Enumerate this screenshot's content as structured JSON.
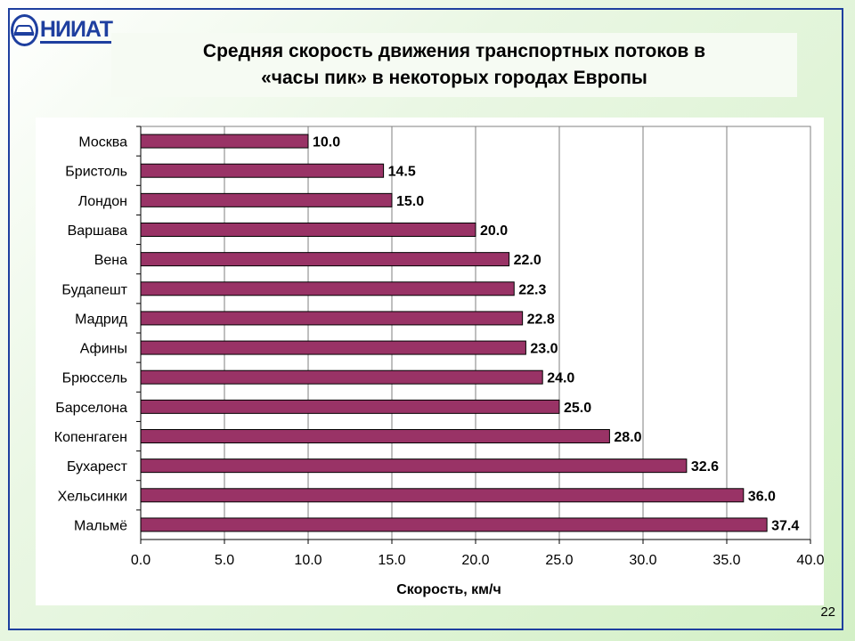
{
  "header": {
    "logo_text": "НИИАТ",
    "title_line1": "Средняя скорость движения транспортных потоков в",
    "title_line2": "«часы пик» в некоторых городах Европы"
  },
  "page_number": "22",
  "colors": {
    "bar": "#993366",
    "frame": "#1e3f9f",
    "grid": "#7f7f7f"
  },
  "chart_data": {
    "type": "bar",
    "orientation": "horizontal",
    "categories": [
      "Москва",
      "Бристоль",
      "Лондон",
      "Варшава",
      "Вена",
      "Будапешт",
      "Мадрид",
      "Афины",
      "Брюссель",
      "Барселона",
      "Копенгаген",
      "Бухарест",
      "Хельсинки",
      "Мальмё"
    ],
    "values": [
      10.0,
      14.5,
      15.0,
      20.0,
      22.0,
      22.3,
      22.8,
      23.0,
      24.0,
      25.0,
      28.0,
      32.6,
      36.0,
      37.4
    ],
    "value_labels": [
      "10.0",
      "14.5",
      "15.0",
      "20.0",
      "22.0",
      "22.3",
      "22.8",
      "23.0",
      "24.0",
      "25.0",
      "28.0",
      "32.6",
      "36.0",
      "37.4"
    ],
    "xlabel": "Скорость, км/ч",
    "xlim": [
      0,
      40
    ],
    "xticks": [
      "0.0",
      "5.0",
      "10.0",
      "15.0",
      "20.0",
      "25.0",
      "30.0",
      "35.0",
      "40.0"
    ],
    "grid": true
  }
}
